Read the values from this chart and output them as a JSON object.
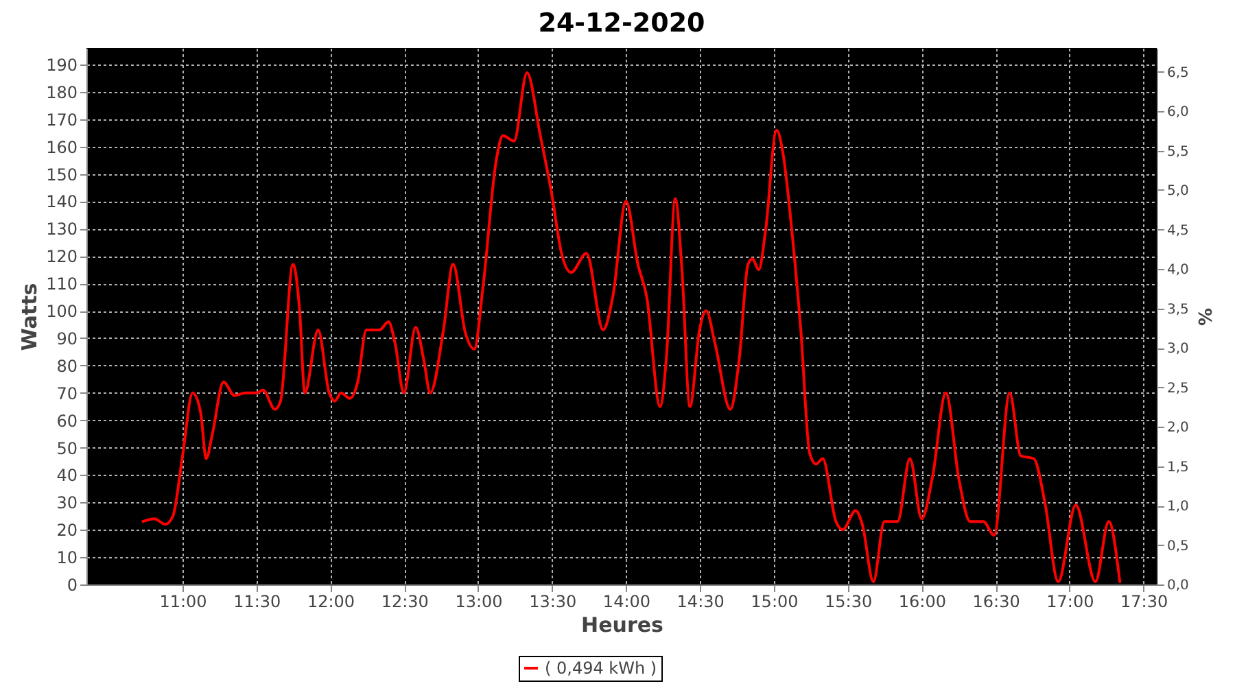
{
  "chart_data": {
    "type": "line",
    "title": "24-12-2020",
    "xlabel": "Heures",
    "ylabel": "Watts",
    "y2label": "%",
    "x": [
      10.732,
      10.81,
      10.883,
      10.935,
      11,
      11.068,
      11.122,
      11.16,
      11.202,
      11.277,
      11.352,
      11.425,
      11.5,
      11.545,
      11.625,
      11.663,
      11.747,
      11.792,
      11.827,
      11.917,
      11.992,
      12.03,
      12.072,
      12.132,
      12.185,
      12.243,
      12.333,
      12.393,
      12.438,
      12.497,
      12.577,
      12.632,
      12.675,
      12.765,
      12.83,
      12.913,
      12.973,
      13.033,
      13.122,
      13.167,
      13.242,
      13.33,
      13.42,
      13.493,
      13.568,
      13.628,
      13.732,
      13.845,
      13.91,
      14,
      14.08,
      14.14,
      14.23,
      14.273,
      14.333,
      14.378,
      14.432,
      14.497,
      14.542,
      14.602,
      14.705,
      14.765,
      14.825,
      14.855,
      14.898,
      14.943,
      15.018,
      15.063,
      15.122,
      15.182,
      15.242,
      15.285,
      15.33,
      15.42,
      15.465,
      15.553,
      15.598,
      15.673,
      15.747,
      15.837,
      15.92,
      16,
      16.075,
      16.163,
      16.253,
      16.327,
      16.417,
      16.49,
      16.595,
      16.67,
      16.758,
      16.833,
      16.923,
      17.042,
      17.175,
      17.265,
      17.34
    ],
    "series": [
      {
        "name": "( 0,494 kWh )",
        "color": "#ff0000",
        "values": [
          23,
          24,
          22,
          25,
          47,
          70,
          63,
          46,
          55,
          74,
          69,
          70,
          70,
          71,
          64,
          67,
          117,
          100,
          70,
          93,
          70,
          67,
          70,
          68,
          74,
          93,
          93,
          96,
          88,
          70,
          94,
          82,
          70,
          93,
          117,
          92,
          86,
          109,
          155,
          164,
          162,
          187,
          164,
          144,
          120,
          114,
          121,
          93,
          105,
          140,
          117,
          105,
          65,
          83,
          141,
          115,
          65,
          93,
          100,
          88,
          64,
          82,
          117,
          119,
          115,
          129,
          166,
          157,
          129,
          93,
          48,
          44,
          46,
          23,
          20,
          27,
          22,
          1,
          23,
          23,
          46,
          24,
          40,
          70,
          38,
          23,
          23,
          18,
          70,
          47,
          46,
          30,
          1,
          29,
          1,
          23,
          1
        ]
      }
    ],
    "xlim": [
      10.35,
      17.59
    ],
    "ylim": [
      0,
      196
    ],
    "xticks": [
      {
        "value": 11,
        "label": "11:00"
      },
      {
        "value": 11.5,
        "label": "11:30"
      },
      {
        "value": 12,
        "label": "12:00"
      },
      {
        "value": 12.5,
        "label": "12:30"
      },
      {
        "value": 13,
        "label": "13:00"
      },
      {
        "value": 13.5,
        "label": "13:30"
      },
      {
        "value": 14,
        "label": "14:00"
      },
      {
        "value": 14.5,
        "label": "14:30"
      },
      {
        "value": 15,
        "label": "15:00"
      },
      {
        "value": 15.5,
        "label": "15:30"
      },
      {
        "value": 16,
        "label": "16:00"
      },
      {
        "value": 16.5,
        "label": "16:30"
      },
      {
        "value": 17,
        "label": "17:00"
      },
      {
        "value": 17.5,
        "label": "17:30"
      }
    ],
    "yticks": [
      0,
      10,
      20,
      30,
      40,
      50,
      60,
      70,
      80,
      90,
      100,
      110,
      120,
      130,
      140,
      150,
      160,
      170,
      180,
      190
    ],
    "y2lim": [
      0,
      6.8
    ],
    "y2ticks": [
      {
        "value": 0,
        "label": "0,0"
      },
      {
        "value": 0.5,
        "label": "0,5"
      },
      {
        "value": 1,
        "label": "1,0"
      },
      {
        "value": 1.5,
        "label": "1,5"
      },
      {
        "value": 2,
        "label": "2,0"
      },
      {
        "value": 2.5,
        "label": "2,5"
      },
      {
        "value": 3,
        "label": "3,0"
      },
      {
        "value": 3.5,
        "label": "3,5"
      },
      {
        "value": 4,
        "label": "4,0"
      },
      {
        "value": 4.5,
        "label": "4,5"
      },
      {
        "value": 5,
        "label": "5,0"
      },
      {
        "value": 5.5,
        "label": "5,5"
      },
      {
        "value": 6,
        "label": "6,0"
      },
      {
        "value": 6.5,
        "label": "6,5"
      }
    ],
    "grid": true,
    "legend": "bottom",
    "marker": "none",
    "line_style": "solid"
  }
}
